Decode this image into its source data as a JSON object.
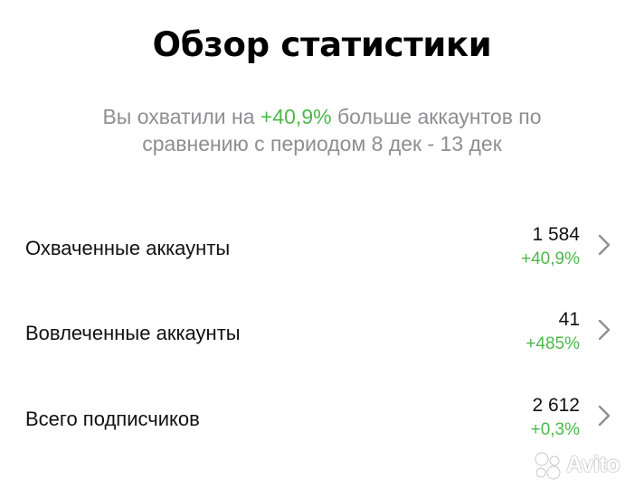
{
  "header": {
    "title": "Обзор статистики"
  },
  "summary": {
    "prefix": "Вы охватили на ",
    "delta": "+40,9%",
    "suffix": " больше аккаунтов по сравнению с периодом 8 дек - 13 дек"
  },
  "metrics": [
    {
      "label": "Охваченные аккаунты",
      "value": "1 584",
      "change": "+40,9%"
    },
    {
      "label": "Вовлеченные аккаунты",
      "value": "41",
      "change": "+485%"
    },
    {
      "label": "Всего подписчиков",
      "value": "2 612",
      "change": "+0,3%"
    }
  ],
  "watermark": {
    "text": "Avito"
  },
  "colors": {
    "positive": "#4cb84a",
    "muted": "#8e8e93",
    "text": "#111111"
  },
  "icons": {
    "row_chevron": "chevron-right-icon",
    "watermark": "avito-logo-icon"
  }
}
